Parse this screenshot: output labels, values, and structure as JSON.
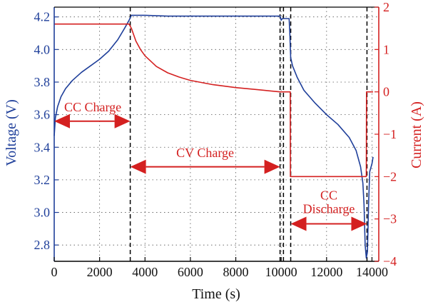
{
  "chart_data": {
    "type": "line",
    "xlabel": "Time (s)",
    "ylabel_left": "Voltage (V)",
    "ylabel_right": "Current (A)",
    "xlim": [
      0,
      14300
    ],
    "ylim_left": [
      2.7,
      4.26
    ],
    "ylim_right": [
      -4,
      2
    ],
    "x_ticks": [
      {
        "value": 0,
        "label": "0"
      },
      {
        "value": 2000,
        "label": "2000"
      },
      {
        "value": 4000,
        "label": "4000"
      },
      {
        "value": 6000,
        "label": "6000"
      },
      {
        "value": 8000,
        "label": "8000"
      },
      {
        "value": 10000,
        "label": "10000"
      },
      {
        "value": 12000,
        "label": "12000"
      },
      {
        "value": 14000,
        "label": "14000"
      }
    ],
    "y_left_ticks": [
      {
        "value": 2.8,
        "label": "2.8"
      },
      {
        "value": 3.0,
        "label": "3.0"
      },
      {
        "value": 3.2,
        "label": "3.2"
      },
      {
        "value": 3.4,
        "label": "3.4"
      },
      {
        "value": 3.6,
        "label": "3.6"
      },
      {
        "value": 3.8,
        "label": "3.8"
      },
      {
        "value": 4.0,
        "label": "4.0"
      },
      {
        "value": 4.2,
        "label": "4.2"
      }
    ],
    "y_right_ticks": [
      {
        "value": -4,
        "label": "−4"
      },
      {
        "value": -3,
        "label": "−3"
      },
      {
        "value": -2,
        "label": "−2"
      },
      {
        "value": -1,
        "label": "−1"
      },
      {
        "value": 0,
        "label": "0"
      },
      {
        "value": 1,
        "label": "1"
      },
      {
        "value": 2,
        "label": "2"
      }
    ],
    "grid": true,
    "colors": {
      "voltage": "#1f3f9a",
      "current": "#d42020",
      "divider": "#000000"
    },
    "series": [
      {
        "axis": "left",
        "x": [
          0,
          50,
          150,
          300,
          500,
          800,
          1200,
          1600,
          2000,
          2400,
          2800,
          3100,
          3300,
          3400,
          4000,
          5000,
          6000,
          7000,
          8000,
          9000,
          9950,
          10000,
          10050,
          10350,
          10380,
          10420,
          10500,
          10700,
          11000,
          11500,
          12000,
          12500,
          13000,
          13300,
          13500,
          13600,
          13650,
          13700,
          13750,
          13800,
          13850,
          13900,
          14000,
          14050
        ],
        "y": [
          3.47,
          3.58,
          3.65,
          3.71,
          3.76,
          3.81,
          3.86,
          3.9,
          3.94,
          3.99,
          4.06,
          4.13,
          4.18,
          4.21,
          4.21,
          4.205,
          4.205,
          4.205,
          4.205,
          4.205,
          4.205,
          4.18,
          4.19,
          4.19,
          4.1,
          3.95,
          3.9,
          3.83,
          3.75,
          3.67,
          3.6,
          3.54,
          3.46,
          3.38,
          3.28,
          3.18,
          3.05,
          2.8,
          2.72,
          2.76,
          3.05,
          3.25,
          3.3,
          3.34
        ]
      },
      {
        "axis": "right",
        "x": [
          0,
          3300,
          3400,
          3600,
          3800,
          4000,
          4500,
          5000,
          5500,
          6000,
          7000,
          8000,
          9000,
          9950,
          9955,
          10400,
          10405,
          13750,
          13760,
          14050
        ],
        "y": [
          1.6,
          1.6,
          1.5,
          1.2,
          1.0,
          0.85,
          0.6,
          0.45,
          0.35,
          0.27,
          0.17,
          0.1,
          0.05,
          0.0,
          0.0,
          0.0,
          -2.0,
          -2.0,
          0.0,
          0.0
        ]
      }
    ],
    "dividers_x": [
      3350,
      9950,
      10100,
      10420,
      13780
    ],
    "annotations": [
      {
        "text": "CC Charge",
        "x": 1700,
        "y_left": 3.62,
        "arrow_from": 0,
        "arrow_to": 3350,
        "arrow_y_left": 3.56
      },
      {
        "text": "CV Charge",
        "x": 6650,
        "y_left": 3.34,
        "arrow_from": 3350,
        "arrow_to": 9950,
        "arrow_y_left": 3.28
      },
      {
        "text": "CC",
        "x": 12100,
        "y_left": 3.08,
        "arrow_from": 10420,
        "arrow_to": 13780,
        "arrow_y_left": 2.93
      },
      {
        "text": "Discharge",
        "x": 12100,
        "y_left": 2.995,
        "arrow_from": null,
        "arrow_to": null,
        "arrow_y_left": null
      }
    ]
  }
}
